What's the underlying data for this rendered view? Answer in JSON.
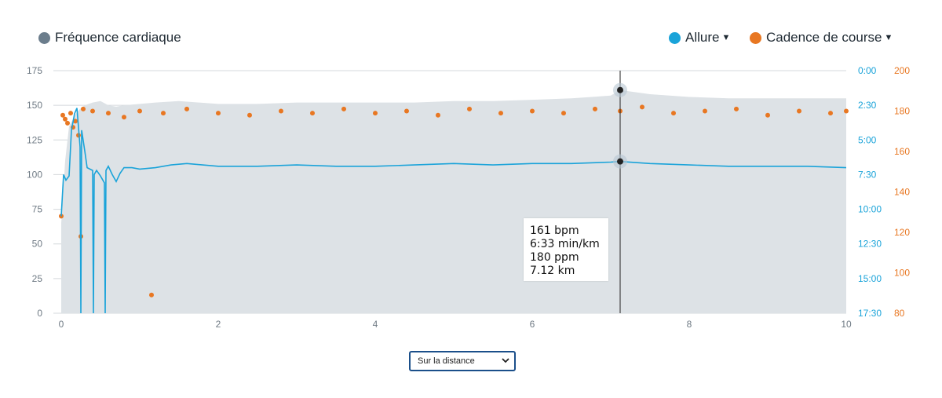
{
  "legend": {
    "heart_rate": {
      "label": "Fréquence cardiaque",
      "color": "#6b7d8c"
    },
    "pace": {
      "label": "Allure",
      "color": "#1aa3d9",
      "has_dropdown": true
    },
    "cadence": {
      "label": "Cadence de course",
      "color": "#e87722",
      "has_dropdown": true
    }
  },
  "tooltip": {
    "heart_rate": "161 bpm",
    "pace": "6:33 min/km",
    "cadence": "180 ppm",
    "distance": "7.12 km"
  },
  "distance_select": {
    "value": "Sur la distance"
  },
  "chart_data": {
    "type": "line",
    "x_axis": {
      "ticks": [
        "0",
        "2",
        "4",
        "6",
        "8",
        "10"
      ],
      "range": [
        0,
        10
      ]
    },
    "y_axis_left": {
      "ticks": [
        "0",
        "25",
        "50",
        "75",
        "100",
        "125",
        "150",
        "175"
      ],
      "range": [
        0,
        175
      ]
    },
    "y_axis_right_pace": {
      "ticks": [
        "0:00",
        "2:30",
        "5:00",
        "7:30",
        "10:00",
        "12:30",
        "15:00",
        "17:30"
      ],
      "range_min_per_km": [
        0,
        17.5
      ],
      "inverted": true
    },
    "y_axis_right_cadence": {
      "ticks": [
        "200",
        "180",
        "160",
        "140",
        "120",
        "100",
        "80"
      ],
      "range": [
        80,
        200
      ]
    },
    "crosshair_x": 7.12,
    "series": [
      {
        "name": "Fréquence cardiaque",
        "kind": "area",
        "color": "#dde2e6",
        "x": [
          0,
          0.05,
          0.1,
          0.15,
          0.2,
          0.25,
          0.3,
          0.4,
          0.5,
          0.6,
          0.7,
          0.8,
          1,
          1.2,
          1.5,
          2,
          2.5,
          3,
          3.5,
          4,
          4.5,
          5,
          5.5,
          6,
          6.5,
          7,
          7.12,
          7.5,
          8,
          8.5,
          9,
          9.5,
          10
        ],
        "values": [
          65,
          110,
          135,
          140,
          145,
          148,
          150,
          152,
          153,
          150,
          149,
          150,
          151,
          152,
          153,
          151,
          151,
          152,
          152,
          152,
          152,
          153,
          153,
          154,
          155,
          157,
          161,
          158,
          156,
          155,
          155,
          155,
          155
        ]
      },
      {
        "name": "Allure",
        "kind": "line",
        "color": "#1aa3d9",
        "x": [
          0,
          0.03,
          0.06,
          0.1,
          0.13,
          0.17,
          0.2,
          0.24,
          0.25,
          0.26,
          0.3,
          0.33,
          0.4,
          0.41,
          0.42,
          0.45,
          0.5,
          0.55,
          0.56,
          0.57,
          0.6,
          0.65,
          0.7,
          0.75,
          0.8,
          0.9,
          1,
          1.2,
          1.4,
          1.6,
          1.8,
          2,
          2.5,
          3,
          3.5,
          4,
          4.5,
          5,
          5.5,
          6,
          6.5,
          7,
          7.12,
          7.5,
          8,
          8.5,
          9,
          9.5,
          10
        ],
        "values": [
          10.5,
          7.5,
          7.9,
          7.6,
          4.3,
          3.1,
          2.7,
          5.5,
          17.5,
          4.3,
          5.8,
          7.0,
          7.2,
          17.5,
          7.5,
          7.2,
          7.6,
          8.1,
          17.5,
          7.2,
          6.9,
          7.5,
          8.0,
          7.4,
          7.0,
          7.0,
          7.1,
          7.0,
          6.8,
          6.7,
          6.8,
          6.9,
          6.9,
          6.8,
          6.9,
          6.9,
          6.8,
          6.7,
          6.8,
          6.7,
          6.7,
          6.6,
          6.55,
          6.7,
          6.8,
          6.9,
          6.9,
          6.9,
          7.0
        ]
      },
      {
        "name": "Cadence de course",
        "kind": "scatter",
        "color": "#e87722",
        "x": [
          0,
          0.02,
          0.05,
          0.08,
          0.12,
          0.15,
          0.18,
          0.22,
          0.25,
          0.28,
          1.15,
          0.4,
          0.6,
          0.8,
          1.0,
          1.3,
          1.6,
          2.0,
          2.4,
          2.8,
          3.2,
          3.6,
          4.0,
          4.4,
          4.8,
          5.2,
          5.6,
          6.0,
          6.4,
          6.8,
          7.12,
          7.4,
          7.8,
          8.2,
          8.6,
          9.0,
          9.4,
          9.8,
          10
        ],
        "values": [
          128,
          178,
          176,
          174,
          179,
          172,
          175,
          168,
          118,
          181,
          89,
          180,
          179,
          177,
          180,
          179,
          181,
          179,
          178,
          180,
          179,
          181,
          179,
          180,
          178,
          181,
          179,
          180,
          179,
          181,
          180,
          182,
          179,
          180,
          181,
          178,
          180,
          179,
          180
        ]
      }
    ]
  }
}
